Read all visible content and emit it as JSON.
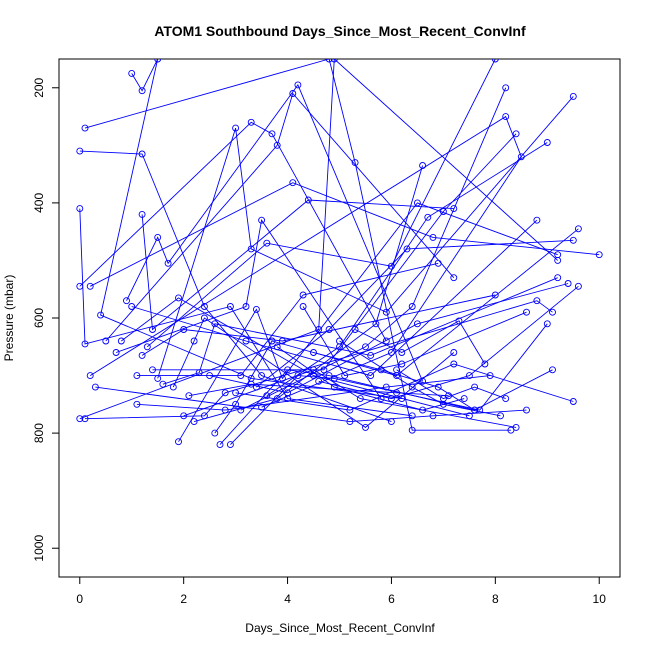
{
  "chart_data": {
    "type": "line",
    "title": "ATOM1 Southbound Days_Since_Most_Recent_ConvInf",
    "xlabel": "Days_Since_Most_Recent_ConvInf",
    "ylabel": "Pressure (mbar)",
    "xlim": [
      -0.4,
      10.4
    ],
    "ylim": [
      1050,
      150
    ],
    "y_reversed": true,
    "x_ticks": [
      0,
      2,
      4,
      6,
      8,
      10
    ],
    "y_ticks": [
      200,
      400,
      600,
      800,
      1000
    ],
    "grid": false,
    "legend": "none",
    "marker": "open-circle",
    "color": "#0000ff",
    "series": [
      {
        "x": [
          1.0,
          1.2,
          1.5,
          0.4,
          3.3,
          6.2
        ],
        "y": [
          175,
          205,
          150,
          595,
          705,
          740
        ]
      },
      {
        "x": [
          0.1,
          4.8,
          5.3,
          6.4,
          8.3
        ],
        "y": [
          270,
          150,
          330,
          795,
          795
        ]
      },
      {
        "x": [
          0.0,
          1.2,
          2.4,
          3.5,
          6.0
        ],
        "y": [
          310,
          315,
          580,
          700,
          780
        ]
      },
      {
        "x": [
          0.0,
          0.1,
          2.9,
          4.0,
          6.4
        ],
        "y": [
          410,
          645,
          580,
          740,
          770
        ]
      },
      {
        "x": [
          0.0,
          3.3,
          3.7,
          5.9
        ],
        "y": [
          545,
          260,
          280,
          640
        ]
      },
      {
        "x": [
          0.2,
          8.2,
          8.5,
          6.0,
          3.5
        ],
        "y": [
          700,
          250,
          320,
          660,
          755
        ]
      },
      {
        "x": [
          0.5,
          3.8,
          4.1,
          7.2
        ],
        "y": [
          640,
          300,
          210,
          530
        ]
      },
      {
        "x": [
          0.0,
          4.6,
          4.9,
          9.2
        ],
        "y": [
          775,
          620,
          150,
          500
        ]
      },
      {
        "x": [
          0.1,
          2.4,
          2.8,
          8.8,
          9.1
        ],
        "y": [
          775,
          770,
          730,
          570,
          590
        ]
      },
      {
        "x": [
          0.7,
          3.2,
          3.5,
          5.8
        ],
        "y": [
          660,
          580,
          430,
          740
        ]
      },
      {
        "x": [
          0.9,
          1.5,
          1.7,
          4.2,
          6.6
        ],
        "y": [
          570,
          460,
          505,
          195,
          710
        ]
      },
      {
        "x": [
          1.2,
          1.4,
          4.4,
          7.2
        ],
        "y": [
          420,
          620,
          395,
          410
        ]
      },
      {
        "x": [
          0.8,
          1.9,
          4.5,
          7.5
        ],
        "y": [
          640,
          565,
          700,
          770
        ]
      },
      {
        "x": [
          1.2,
          2.0,
          3.9,
          8.0
        ],
        "y": [
          665,
          620,
          640,
          560
        ]
      },
      {
        "x": [
          1.1,
          3.1,
          4.3,
          6.9
        ],
        "y": [
          700,
          700,
          560,
          505
        ]
      },
      {
        "x": [
          1.5,
          3.0,
          3.3,
          5.9,
          9.5
        ],
        "y": [
          705,
          270,
          480,
          590,
          215
        ]
      },
      {
        "x": [
          1.6,
          2.3,
          2.6,
          5.6,
          9.2
        ],
        "y": [
          715,
          695,
          610,
          665,
          530
        ]
      },
      {
        "x": [
          1.8,
          2.2,
          2.4,
          5.5,
          7.2
        ],
        "y": [
          720,
          640,
          600,
          790,
          660
        ]
      },
      {
        "x": [
          1.9,
          3.4,
          3.9,
          6.5,
          9.2
        ],
        "y": [
          815,
          585,
          705,
          400,
          490
        ]
      },
      {
        "x": [
          2.6,
          3.0,
          3.7,
          6.1,
          9.6
        ],
        "y": [
          800,
          750,
          640,
          700,
          445
        ]
      },
      {
        "x": [
          2.7,
          4.0,
          4.8,
          7.6,
          9.1
        ],
        "y": [
          820,
          690,
          700,
          760,
          690
        ]
      },
      {
        "x": [
          2.9,
          4.2,
          4.9,
          7.7,
          9.0
        ],
        "y": [
          820,
          700,
          705,
          760,
          610
        ]
      },
      {
        "x": [
          2.0,
          4.5,
          5.4,
          8.4
        ],
        "y": [
          770,
          690,
          740,
          790
        ]
      },
      {
        "x": [
          2.2,
          3.8,
          5.7,
          6.6
        ],
        "y": [
          780,
          740,
          610,
          335
        ]
      },
      {
        "x": [
          3.1,
          5.5,
          6.4,
          8.2
        ],
        "y": [
          760,
          650,
          580,
          200
        ]
      },
      {
        "x": [
          3.4,
          4.8,
          6.3,
          9.5
        ],
        "y": [
          720,
          620,
          480,
          465
        ]
      },
      {
        "x": [
          3.6,
          5.0,
          6.7,
          9.0
        ],
        "y": [
          735,
          650,
          425,
          295
        ]
      },
      {
        "x": [
          1.3,
          3.6,
          6.0,
          8.0
        ],
        "y": [
          650,
          470,
          510,
          150
        ]
      },
      {
        "x": [
          1.4,
          4.7,
          7.0,
          8.4
        ],
        "y": [
          690,
          690,
          415,
          280
        ]
      },
      {
        "x": [
          0.2,
          4.1,
          6.8,
          10.0
        ],
        "y": [
          545,
          365,
          460,
          490
        ]
      },
      {
        "x": [
          1.0,
          3.2,
          5.6,
          8.8
        ],
        "y": [
          580,
          640,
          700,
          430
        ]
      },
      {
        "x": [
          2.5,
          4.0,
          6.5,
          9.4
        ],
        "y": [
          700,
          730,
          610,
          540
        ]
      },
      {
        "x": [
          3.0,
          5.2,
          7.2,
          9.5
        ],
        "y": [
          730,
          760,
          680,
          745
        ]
      },
      {
        "x": [
          4.3,
          5.1,
          6.2,
          8.6
        ],
        "y": [
          580,
          700,
          680,
          590
        ]
      },
      {
        "x": [
          4.6,
          6.0,
          7.5,
          9.6
        ],
        "y": [
          710,
          740,
          700,
          545
        ]
      },
      {
        "x": [
          0.3,
          5.2,
          6.8,
          8.6
        ],
        "y": [
          720,
          780,
          770,
          760
        ]
      },
      {
        "x": [
          1.1,
          2.8,
          5.9,
          7.9
        ],
        "y": [
          750,
          760,
          720,
          700
        ]
      },
      {
        "x": [
          2.1,
          3.3,
          6.1,
          7.1
        ],
        "y": [
          735,
          715,
          730,
          735
        ]
      },
      {
        "x": [
          5.0,
          6.4,
          7.0,
          8.1
        ],
        "y": [
          640,
          720,
          750,
          770
        ]
      },
      {
        "x": [
          5.3,
          6.2,
          7.3,
          7.8
        ],
        "y": [
          620,
          660,
          605,
          680
        ]
      },
      {
        "x": [
          4.5,
          5.8,
          6.9,
          7.6
        ],
        "y": [
          660,
          690,
          720,
          760
        ]
      },
      {
        "x": [
          3.8,
          4.9,
          6.6,
          7.4
        ],
        "y": [
          650,
          720,
          760,
          740
        ]
      },
      {
        "x": [
          6.1,
          7.0,
          7.6,
          8.2
        ],
        "y": [
          690,
          740,
          720,
          740
        ]
      }
    ]
  }
}
